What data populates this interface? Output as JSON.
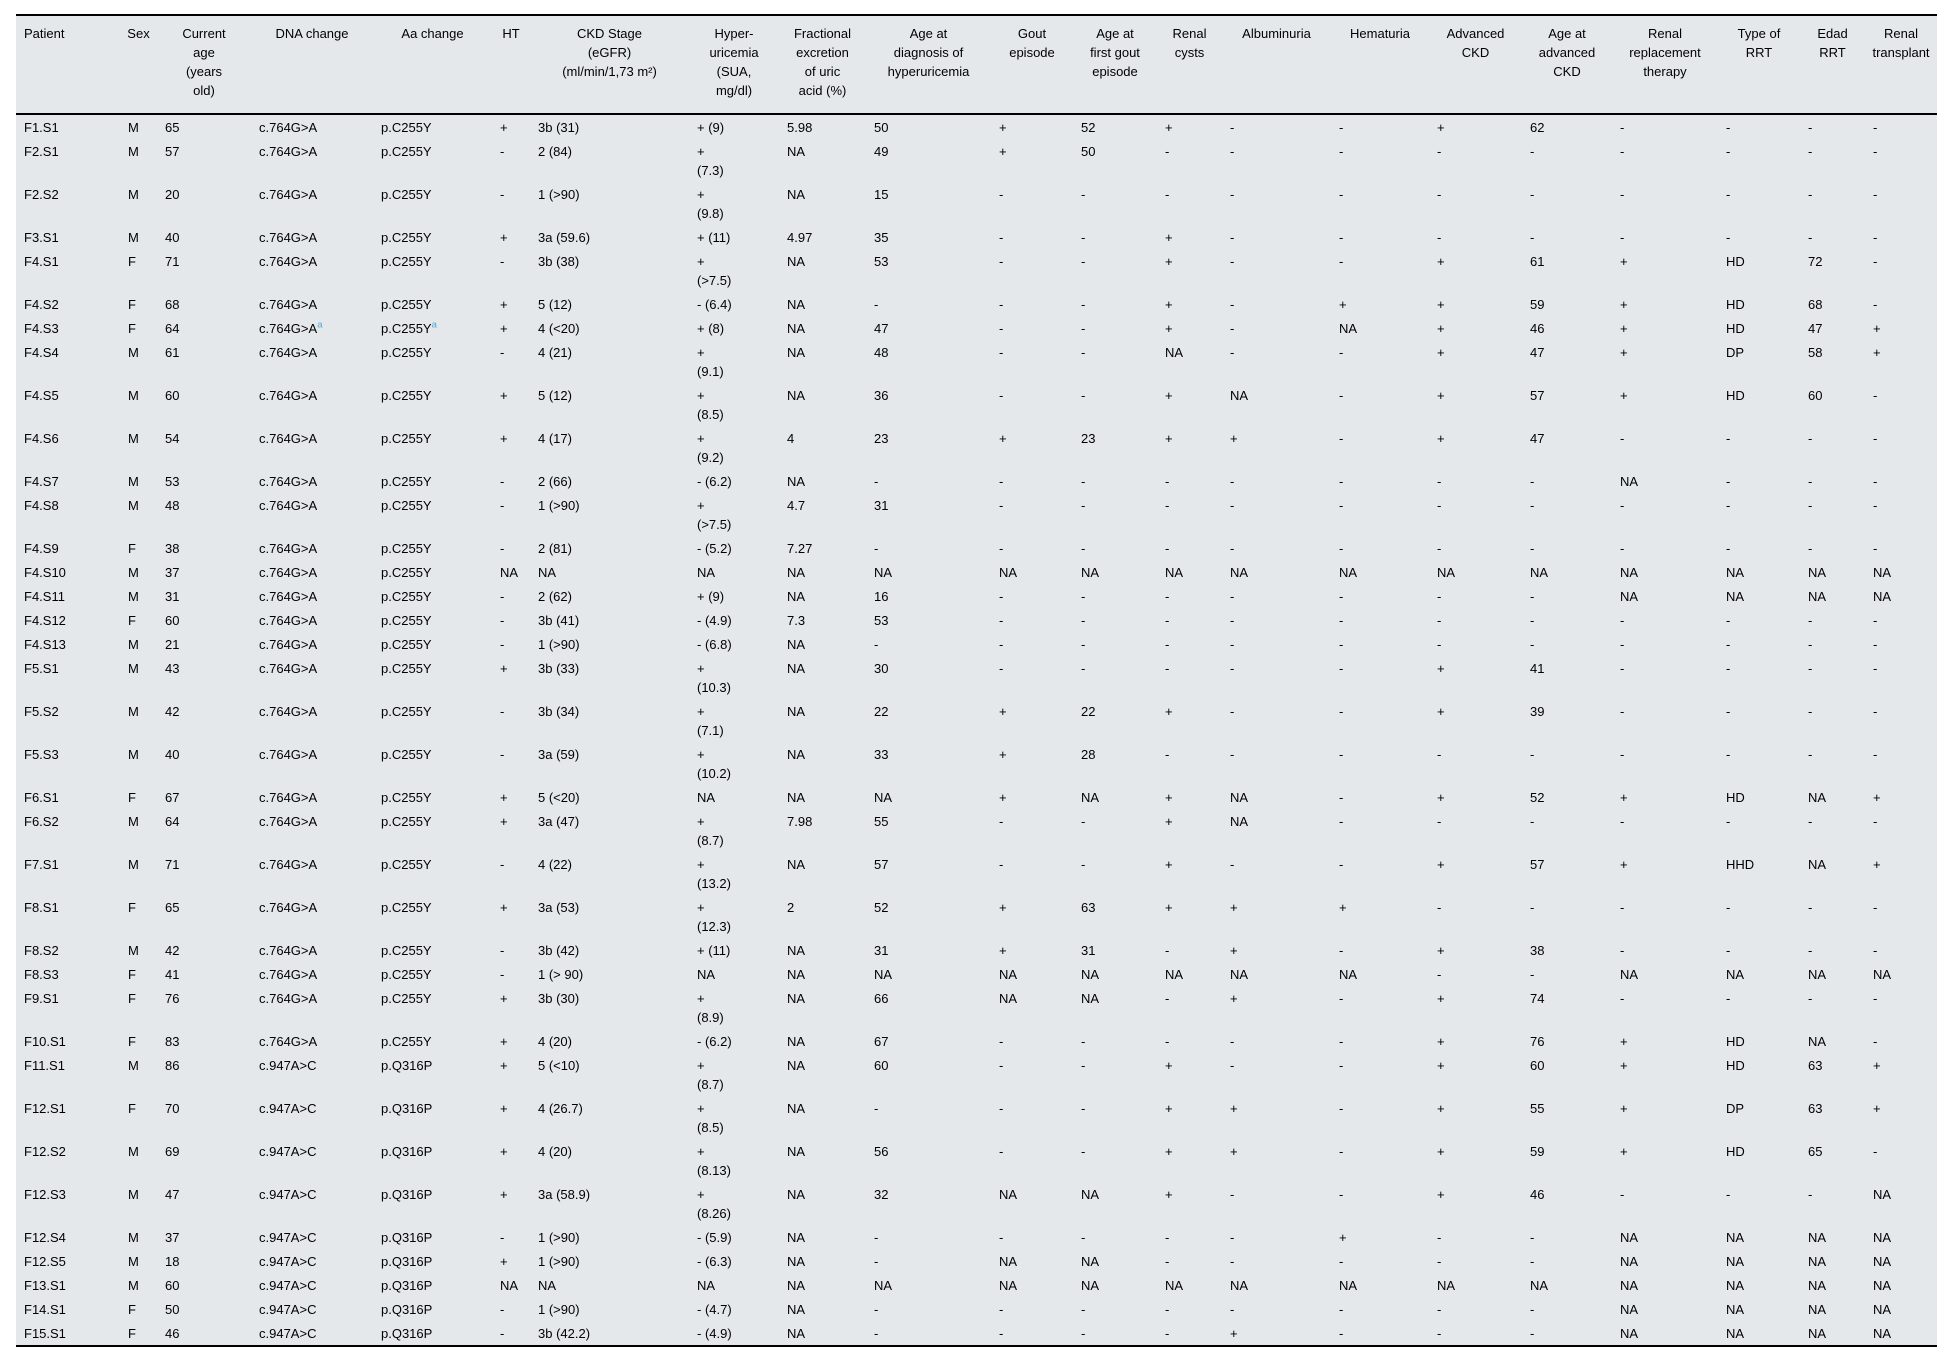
{
  "page": {
    "background_color": "#ffffff"
  },
  "table": {
    "background_color": "#e4e8ea",
    "border_color": "#000000",
    "footnote_marker_color": "#4fa8d8",
    "sup_delimiter": "^",
    "columns": [
      {
        "key": "patient",
        "label": "Patient"
      },
      {
        "key": "sex",
        "label": "Sex"
      },
      {
        "key": "current-age",
        "label": "Current\nage\n(years\nold)"
      },
      {
        "key": "dna-change",
        "label": "DNA change"
      },
      {
        "key": "aa-change",
        "label": "Aa change"
      },
      {
        "key": "ht",
        "label": "HT"
      },
      {
        "key": "ckd-stage",
        "label": "CKD Stage\n(eGFR)\n(ml/min/1,73 m²)"
      },
      {
        "key": "hyperuricemia",
        "label": "Hyper-\nuricemia\n(SUA,\nmg/dl)"
      },
      {
        "key": "fractional-excretion",
        "label": "Fractional\nexcretion\nof uric\nacid (%)"
      },
      {
        "key": "age-diagnosis-hyperuricemia",
        "label": "Age at\ndiagnosis of\nhyperuricemia"
      },
      {
        "key": "gout-episode",
        "label": "Gout\nepisode"
      },
      {
        "key": "age-first-gout",
        "label": "Age at\nfirst gout\nepisode"
      },
      {
        "key": "renal-cysts",
        "label": "Renal\ncysts"
      },
      {
        "key": "albuminuria",
        "label": "Albuminuria"
      },
      {
        "key": "hematuria",
        "label": "Hematuria"
      },
      {
        "key": "advanced-ckd",
        "label": "Advanced\nCKD"
      },
      {
        "key": "age-advanced-ckd",
        "label": "Age at\nadvanced\nCKD"
      },
      {
        "key": "renal-replacement-therapy",
        "label": "Renal\nreplacement\ntherapy"
      },
      {
        "key": "type-of-rrt",
        "label": "Type of\nRRT"
      },
      {
        "key": "edad-rrt",
        "label": "Edad\nRRT"
      },
      {
        "key": "renal-transplant",
        "label": "Renal\ntransplant"
      }
    ],
    "rows": [
      [
        "F1.S1",
        "M",
        "65",
        "c.764G>A",
        "p.C255Y",
        "+",
        "3b (31)",
        "+ (9)",
        "5.98",
        "50",
        "+",
        "52",
        "+",
        "-",
        "-",
        "+",
        "62",
        "-",
        "-",
        "-",
        "-"
      ],
      [
        "F2.S1",
        "M",
        "57",
        "c.764G>A",
        "p.C255Y",
        "-",
        "2 (84)",
        "+\n(7.3)",
        "NA",
        "49",
        "+",
        "50",
        "-",
        "-",
        "-",
        "-",
        "-",
        "-",
        "-",
        "-",
        "-"
      ],
      [
        "F2.S2",
        "M",
        "20",
        "c.764G>A",
        "p.C255Y",
        "-",
        "1 (>90)",
        "+\n(9.8)",
        "NA",
        "15",
        "-",
        "-",
        "-",
        "-",
        "-",
        "-",
        "-",
        "-",
        "-",
        "-",
        "-"
      ],
      [
        "F3.S1",
        "M",
        "40",
        "c.764G>A",
        "p.C255Y",
        "+",
        "3a (59.6)",
        "+ (11)",
        "4.97",
        "35",
        "-",
        "-",
        "+",
        "-",
        "-",
        "-",
        "-",
        "-",
        "-",
        "-",
        "-"
      ],
      [
        "F4.S1",
        "F",
        "71",
        "c.764G>A",
        "p.C255Y",
        "-",
        "3b (38)",
        "+\n(>7.5)",
        "NA",
        "53",
        "-",
        "-",
        "+",
        "-",
        "-",
        "+",
        "61",
        "+",
        "HD",
        "72",
        "-"
      ],
      [
        "F4.S2",
        "F",
        "68",
        "c.764G>A",
        "p.C255Y",
        "+",
        "5 (12)",
        "- (6.4)",
        "NA",
        "-",
        "-",
        "-",
        "+",
        "-",
        "+",
        "+",
        "59",
        "+",
        "HD",
        "68",
        "-"
      ],
      [
        "F4.S3",
        "F",
        "64",
        "c.764G>A^a",
        "p.C255Y^a",
        "+",
        "4 (<20)",
        "+ (8)",
        "NA",
        "47",
        "-",
        "-",
        "+",
        "-",
        "NA",
        "+",
        "46",
        "+",
        "HD",
        "47",
        "+"
      ],
      [
        "F4.S4",
        "M",
        "61",
        "c.764G>A",
        "p.C255Y",
        "-",
        "4 (21)",
        "+\n(9.1)",
        "NA",
        "48",
        "-",
        "-",
        "NA",
        "-",
        "-",
        "+",
        "47",
        "+",
        "DP",
        "58",
        "+"
      ],
      [
        "F4.S5",
        "M",
        "60",
        "c.764G>A",
        "p.C255Y",
        "+",
        "5 (12)",
        "+\n(8.5)",
        "NA",
        "36",
        "-",
        "-",
        "+",
        "NA",
        "-",
        "+",
        "57",
        "+",
        "HD",
        "60",
        "-"
      ],
      [
        "F4.S6",
        "M",
        "54",
        "c.764G>A",
        "p.C255Y",
        "+",
        "4 (17)",
        "+\n(9.2)",
        "4",
        "23",
        "+",
        "23",
        "+",
        "+",
        "-",
        "+",
        "47",
        "-",
        "-",
        "-",
        "-"
      ],
      [
        "F4.S7",
        "M",
        "53",
        "c.764G>A",
        "p.C255Y",
        "-",
        "2 (66)",
        "- (6.2)",
        "NA",
        "-",
        "-",
        "-",
        "-",
        "-",
        "-",
        "-",
        "-",
        "NA",
        "-",
        "-",
        "-"
      ],
      [
        "F4.S8",
        "M",
        "48",
        "c.764G>A",
        "p.C255Y",
        "-",
        "1 (>90)",
        "+\n(>7.5)",
        "4.7",
        "31",
        "-",
        "-",
        "-",
        "-",
        "-",
        "-",
        "-",
        "-",
        "-",
        "-",
        "-"
      ],
      [
        "F4.S9",
        "F",
        "38",
        "c.764G>A",
        "p.C255Y",
        "-",
        "2 (81)",
        "- (5.2)",
        "7.27",
        "-",
        "-",
        "-",
        "-",
        "-",
        "-",
        "-",
        "-",
        "-",
        "-",
        "-",
        "-"
      ],
      [
        "F4.S10",
        "M",
        "37",
        "c.764G>A",
        "p.C255Y",
        "NA",
        "NA",
        "NA",
        "NA",
        "NA",
        "NA",
        "NA",
        "NA",
        "NA",
        "NA",
        "NA",
        "NA",
        "NA",
        "NA",
        "NA",
        "NA"
      ],
      [
        "F4.S11",
        "M",
        "31",
        "c.764G>A",
        "p.C255Y",
        "-",
        "2 (62)",
        "+ (9)",
        "NA",
        "16",
        "-",
        "-",
        "-",
        "-",
        "-",
        "-",
        "-",
        "NA",
        "NA",
        "NA",
        "NA"
      ],
      [
        "F4.S12",
        "F",
        "60",
        "c.764G>A",
        "p.C255Y",
        "-",
        "3b (41)",
        "- (4.9)",
        "7.3",
        "53",
        "-",
        "-",
        "-",
        "-",
        "-",
        "-",
        "-",
        "-",
        "-",
        "-",
        "-"
      ],
      [
        "F4.S13",
        "M",
        "21",
        "c.764G>A",
        "p.C255Y",
        "-",
        "1 (>90)",
        "- (6.8)",
        "NA",
        "-",
        "-",
        "-",
        "-",
        "-",
        "-",
        "-",
        "-",
        "-",
        "-",
        "-",
        "-"
      ],
      [
        "F5.S1",
        "M",
        "43",
        "c.764G>A",
        "p.C255Y",
        "+",
        "3b (33)",
        "+\n(10.3)",
        "NA",
        "30",
        "-",
        "-",
        "-",
        "-",
        "-",
        "+",
        "41",
        "-",
        "-",
        "-",
        "-"
      ],
      [
        "F5.S2",
        "M",
        "42",
        "c.764G>A",
        "p.C255Y",
        "-",
        "3b (34)",
        "+\n(7.1)",
        "NA",
        "22",
        "+",
        "22",
        "+",
        "-",
        "-",
        "+",
        "39",
        "-",
        "-",
        "-",
        "-"
      ],
      [
        "F5.S3",
        "M",
        "40",
        "c.764G>A",
        "p.C255Y",
        "-",
        "3a (59)",
        "+\n(10.2)",
        "NA",
        "33",
        "+",
        "28",
        "-",
        "-",
        "-",
        "-",
        "-",
        "-",
        "-",
        "-",
        "-"
      ],
      [
        "F6.S1",
        "F",
        "67",
        "c.764G>A",
        "p.C255Y",
        "+",
        "5 (<20)",
        "NA",
        "NA",
        "NA",
        "+",
        "NA",
        "+",
        "NA",
        "-",
        "+",
        "52",
        "+",
        "HD",
        "NA",
        "+"
      ],
      [
        "F6.S2",
        "M",
        "64",
        "c.764G>A",
        "p.C255Y",
        "+",
        "3a (47)",
        "+\n(8.7)",
        "7.98",
        "55",
        "-",
        "-",
        "+",
        "NA",
        "-",
        "-",
        "-",
        "-",
        "-",
        "-",
        "-"
      ],
      [
        "F7.S1",
        "M",
        "71",
        "c.764G>A",
        "p.C255Y",
        "-",
        "4 (22)",
        "+\n(13.2)",
        "NA",
        "57",
        "-",
        "-",
        "+",
        "-",
        "-",
        "+",
        "57",
        "+",
        "HHD",
        "NA",
        "+"
      ],
      [
        "F8.S1",
        "F",
        "65",
        "c.764G>A",
        "p.C255Y",
        "+",
        "3a (53)",
        "+\n(12.3)",
        "2",
        "52",
        "+",
        "63",
        "+",
        "+",
        "+",
        "-",
        "-",
        "-",
        "-",
        "-",
        "-"
      ],
      [
        "F8.S2",
        "M",
        "42",
        "c.764G>A",
        "p.C255Y",
        "-",
        "3b (42)",
        "+ (11)",
        "NA",
        "31",
        "+",
        "31",
        "-",
        "+",
        "-",
        "+",
        "38",
        "-",
        "-",
        "-",
        "-"
      ],
      [
        "F8.S3",
        "F",
        "41",
        "c.764G>A",
        "p.C255Y",
        "-",
        "1 (> 90)",
        "NA",
        "NA",
        "NA",
        "NA",
        "NA",
        "NA",
        "NA",
        "NA",
        "-",
        "-",
        "NA",
        "NA",
        "NA",
        "NA"
      ],
      [
        "F9.S1",
        "F",
        "76",
        "c.764G>A",
        "p.C255Y",
        "+",
        "3b (30)",
        "+\n(8.9)",
        "NA",
        "66",
        "NA",
        "NA",
        "-",
        "+",
        "-",
        "+",
        "74",
        "-",
        "-",
        "-",
        "-"
      ],
      [
        "F10.S1",
        "F",
        "83",
        "c.764G>A",
        "p.C255Y",
        "+",
        "4 (20)",
        "- (6.2)",
        "NA",
        "67",
        "-",
        "-",
        "-",
        "-",
        "-",
        "+",
        "76",
        "+",
        "HD",
        "NA",
        "-"
      ],
      [
        "F11.S1",
        "M",
        "86",
        "c.947A>C",
        "p.Q316P",
        "+",
        "5 (<10)",
        "+\n(8.7)",
        "NA",
        "60",
        "-",
        "-",
        "+",
        "-",
        "-",
        "+",
        "60",
        "+",
        "HD",
        "63",
        "+"
      ],
      [
        "F12.S1",
        "F",
        "70",
        "c.947A>C",
        "p.Q316P",
        "+",
        "4 (26.7)",
        "+\n(8.5)",
        "NA",
        "-",
        "-",
        "-",
        "+",
        "+",
        "-",
        "+",
        "55",
        "+",
        "DP",
        "63",
        "+"
      ],
      [
        "F12.S2",
        "M",
        "69",
        "c.947A>C",
        "p.Q316P",
        "+",
        "4 (20)",
        "+\n(8.13)",
        "NA",
        "56",
        "-",
        "-",
        "+",
        "+",
        "-",
        "+",
        "59",
        "+",
        "HD",
        "65",
        "-"
      ],
      [
        "F12.S3",
        "M",
        "47",
        "c.947A>C",
        "p.Q316P",
        "+",
        "3a (58.9)",
        "+\n(8.26)",
        "NA",
        "32",
        "NA",
        "NA",
        "+",
        "-",
        "-",
        "+",
        "46",
        "-",
        "-",
        "-",
        "NA"
      ],
      [
        "F12.S4",
        "M",
        "37",
        "c.947A>C",
        "p.Q316P",
        "-",
        "1 (>90)",
        "- (5.9)",
        "NA",
        "-",
        "-",
        "-",
        "-",
        "-",
        "+",
        "-",
        "-",
        "NA",
        "NA",
        "NA",
        "NA"
      ],
      [
        "F12.S5",
        "M",
        "18",
        "c.947A>C",
        "p.Q316P",
        "+",
        "1 (>90)",
        "- (6.3)",
        "NA",
        "-",
        "NA",
        "NA",
        "-",
        "-",
        "-",
        "-",
        "-",
        "NA",
        "NA",
        "NA",
        "NA"
      ],
      [
        "F13.S1",
        "M",
        "60",
        "c.947A>C",
        "p.Q316P",
        "NA",
        "NA",
        "NA",
        "NA",
        "NA",
        "NA",
        "NA",
        "NA",
        "NA",
        "NA",
        "NA",
        "NA",
        "NA",
        "NA",
        "NA",
        "NA"
      ],
      [
        "F14.S1",
        "F",
        "50",
        "c.947A>C",
        "p.Q316P",
        "-",
        "1 (>90)",
        "- (4.7)",
        "NA",
        "-",
        "-",
        "-",
        "-",
        "-",
        "-",
        "-",
        "-",
        "NA",
        "NA",
        "NA",
        "NA"
      ],
      [
        "F15.S1",
        "F",
        "46",
        "c.947A>C",
        "p.Q316P",
        "-",
        "3b (42.2)",
        "- (4.9)",
        "NA",
        "-",
        "-",
        "-",
        "-",
        "+",
        "-",
        "-",
        "-",
        "NA",
        "NA",
        "NA",
        "NA"
      ]
    ]
  }
}
